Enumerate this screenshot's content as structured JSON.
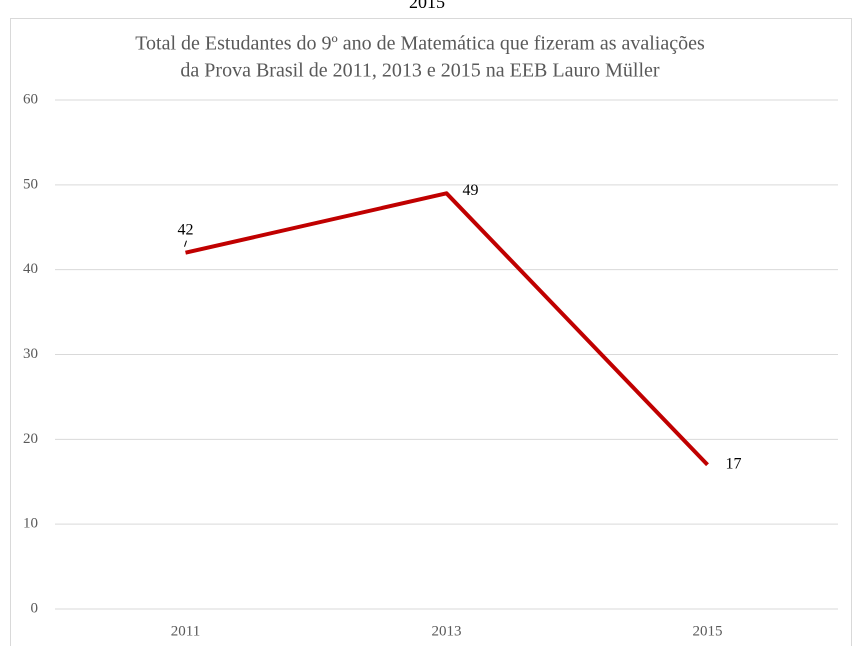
{
  "caption": "2015",
  "chart_data": {
    "type": "line",
    "title": [
      "Total de Estudantes do 9º ano de Matemática que fizeram as avaliações",
      "da Prova Brasil de 2011, 2013 e 2015 na EEB Lauro Müller"
    ],
    "categories": [
      "2011",
      "2013",
      "2015"
    ],
    "series": [
      {
        "name": "Total de Estudantes",
        "color": "#c00000",
        "values": [
          42,
          49,
          17
        ]
      }
    ],
    "ylim": [
      0,
      60
    ],
    "yticks": [
      0,
      10,
      20,
      30,
      40,
      50,
      60
    ],
    "grid": true,
    "legend": false
  }
}
